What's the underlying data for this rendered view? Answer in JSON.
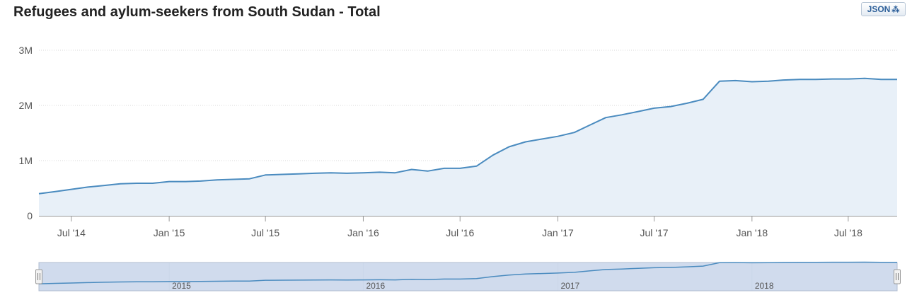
{
  "title": "Refugees and aylum-seekers from South Sudan - Total",
  "json_button": {
    "label": "JSON",
    "icon": "rss-feed-icon"
  },
  "colors": {
    "line": "#4a8bbf",
    "area": "#e8f0f8",
    "grid": "#d8d8d8",
    "navigator_mask": "#c9d6ea"
  },
  "chart_data": {
    "type": "area",
    "title": "Refugees and aylum-seekers from South Sudan - Total",
    "xlabel": "",
    "ylabel": "",
    "xlim": [
      "2014-05-01",
      "2018-10-01"
    ],
    "ylim": [
      0,
      3000000
    ],
    "grid": true,
    "y_ticks": [
      {
        "value": 0,
        "label": "0"
      },
      {
        "value": 1000000,
        "label": "1M"
      },
      {
        "value": 2000000,
        "label": "2M"
      },
      {
        "value": 3000000,
        "label": "3M"
      }
    ],
    "x_ticks": [
      {
        "date": "2014-07-01",
        "label": "Jul '14"
      },
      {
        "date": "2015-01-01",
        "label": "Jan '15"
      },
      {
        "date": "2015-07-01",
        "label": "Jul '15"
      },
      {
        "date": "2016-01-01",
        "label": "Jan '16"
      },
      {
        "date": "2016-07-01",
        "label": "Jul '16"
      },
      {
        "date": "2017-01-01",
        "label": "Jan '17"
      },
      {
        "date": "2017-07-01",
        "label": "Jul '17"
      },
      {
        "date": "2018-01-01",
        "label": "Jan '18"
      },
      {
        "date": "2018-07-01",
        "label": "Jul '18"
      }
    ],
    "series": [
      {
        "points": [
          [
            "2014-05-01",
            400000
          ],
          [
            "2014-06-01",
            440000
          ],
          [
            "2014-07-01",
            480000
          ],
          [
            "2014-08-01",
            520000
          ],
          [
            "2014-09-01",
            550000
          ],
          [
            "2014-10-01",
            580000
          ],
          [
            "2014-11-01",
            590000
          ],
          [
            "2014-12-01",
            590000
          ],
          [
            "2015-01-01",
            620000
          ],
          [
            "2015-02-01",
            620000
          ],
          [
            "2015-03-01",
            630000
          ],
          [
            "2015-04-01",
            650000
          ],
          [
            "2015-05-01",
            660000
          ],
          [
            "2015-06-01",
            670000
          ],
          [
            "2015-07-01",
            740000
          ],
          [
            "2015-08-01",
            750000
          ],
          [
            "2015-09-01",
            760000
          ],
          [
            "2015-10-01",
            770000
          ],
          [
            "2015-11-01",
            780000
          ],
          [
            "2015-12-01",
            770000
          ],
          [
            "2016-01-01",
            780000
          ],
          [
            "2016-02-01",
            790000
          ],
          [
            "2016-03-01",
            780000
          ],
          [
            "2016-04-01",
            840000
          ],
          [
            "2016-05-01",
            810000
          ],
          [
            "2016-06-01",
            860000
          ],
          [
            "2016-07-01",
            860000
          ],
          [
            "2016-08-01",
            900000
          ],
          [
            "2016-09-01",
            1100000
          ],
          [
            "2016-10-01",
            1250000
          ],
          [
            "2016-11-01",
            1340000
          ],
          [
            "2016-12-01",
            1390000
          ],
          [
            "2017-01-01",
            1440000
          ],
          [
            "2017-02-01",
            1510000
          ],
          [
            "2017-03-01",
            1640000
          ],
          [
            "2017-04-01",
            1780000
          ],
          [
            "2017-05-01",
            1830000
          ],
          [
            "2017-06-01",
            1890000
          ],
          [
            "2017-07-01",
            1950000
          ],
          [
            "2017-08-01",
            1980000
          ],
          [
            "2017-09-01",
            2040000
          ],
          [
            "2017-10-01",
            2110000
          ],
          [
            "2017-11-01",
            2440000
          ],
          [
            "2017-12-01",
            2450000
          ],
          [
            "2018-01-01",
            2430000
          ],
          [
            "2018-02-01",
            2440000
          ],
          [
            "2018-03-01",
            2460000
          ],
          [
            "2018-04-01",
            2470000
          ],
          [
            "2018-05-01",
            2470000
          ],
          [
            "2018-06-01",
            2480000
          ],
          [
            "2018-07-01",
            2480000
          ],
          [
            "2018-08-01",
            2490000
          ],
          [
            "2018-09-01",
            2470000
          ],
          [
            "2018-10-01",
            2470000
          ]
        ]
      }
    ],
    "navigator": {
      "labels": [
        {
          "date": "2015-01-01",
          "label": "2015"
        },
        {
          "date": "2016-01-01",
          "label": "2016"
        },
        {
          "date": "2017-01-01",
          "label": "2017"
        },
        {
          "date": "2018-01-01",
          "label": "2018"
        }
      ],
      "selection": [
        "2014-05-01",
        "2018-10-01"
      ]
    }
  }
}
